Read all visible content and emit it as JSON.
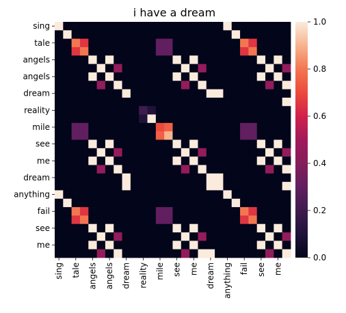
{
  "chart_data": {
    "type": "heatmap",
    "title": "i have a dream",
    "xlabel": "",
    "ylabel": "",
    "x_tick_labels": [
      "sing",
      "tale",
      "angels",
      "angels",
      "dream",
      "reality",
      "mile",
      "see",
      "me",
      "dream",
      "anything",
      "fail",
      "see",
      "me"
    ],
    "y_tick_labels": [
      "sing",
      "tale",
      "angels",
      "angels",
      "dream",
      "reality",
      "mile",
      "see",
      "me",
      "dream",
      "anything",
      "fail",
      "see",
      "me"
    ],
    "rows": 28,
    "cols": 28,
    "tick_every": 2,
    "colorbar": {
      "min": 0.0,
      "max": 1.0,
      "ticks": [
        "0.0",
        "0.2",
        "0.4",
        "0.6",
        "0.8",
        "1.0"
      ],
      "colormap": "rocket"
    },
    "matrix": [
      [
        1,
        0,
        0,
        0,
        0,
        0,
        0,
        0,
        0,
        0,
        0,
        0,
        0,
        0,
        0,
        0,
        0,
        0,
        0,
        0,
        1,
        0,
        0,
        0,
        0,
        0,
        0,
        0
      ],
      [
        0,
        1,
        0,
        0,
        0,
        0,
        0,
        0,
        0,
        0,
        0,
        0,
        0,
        0,
        0,
        0,
        0,
        0,
        0,
        0,
        0,
        1,
        0,
        0,
        0,
        0,
        0,
        0
      ],
      [
        0,
        0,
        0.8,
        0.65,
        0,
        0,
        0,
        0,
        0,
        0,
        0,
        0,
        0.3,
        0.3,
        0,
        0,
        0,
        0,
        0,
        0,
        0,
        0,
        0.8,
        0.65,
        0,
        0,
        0,
        0
      ],
      [
        0,
        0,
        0.65,
        0.8,
        0,
        0,
        0,
        0,
        0,
        0,
        0,
        0,
        0.3,
        0.3,
        0,
        0,
        0,
        0,
        0,
        0,
        0,
        0,
        0.65,
        0.8,
        0,
        0,
        0,
        0
      ],
      [
        0,
        0,
        0,
        0,
        1,
        0,
        1,
        0,
        0,
        0,
        0,
        0,
        0,
        0,
        1,
        0,
        1,
        0,
        0,
        0,
        0,
        0,
        0,
        0,
        1,
        0,
        1,
        0
      ],
      [
        0,
        0,
        0,
        0,
        0,
        1,
        0,
        0.45,
        0,
        0,
        0,
        0,
        0,
        0,
        0,
        1,
        0,
        0.45,
        0,
        0,
        0,
        0,
        0,
        0,
        0,
        1,
        0,
        0.45
      ],
      [
        0,
        0,
        0,
        0,
        1,
        0,
        1,
        0,
        0,
        0,
        0,
        0,
        0,
        0,
        1,
        0,
        1,
        0,
        0,
        0,
        0,
        0,
        0,
        0,
        1,
        0,
        1,
        0
      ],
      [
        0,
        0,
        0,
        0,
        0,
        0.45,
        0,
        1,
        0,
        0,
        0,
        0,
        0,
        0,
        0,
        0.45,
        0,
        1,
        0,
        0,
        0,
        0,
        0,
        0,
        0,
        0.45,
        0,
        1
      ],
      [
        0,
        0,
        0,
        0,
        0,
        0,
        0,
        0,
        1,
        0,
        0,
        0,
        0,
        0,
        0,
        0,
        0,
        0,
        1,
        1,
        0,
        0,
        0,
        0,
        0,
        0,
        0,
        0
      ],
      [
        0,
        0,
        0,
        0,
        0,
        0,
        0,
        0,
        0,
        0,
        0,
        0,
        0,
        0,
        0,
        0,
        0,
        0,
        0,
        0,
        0,
        0,
        0,
        0,
        0,
        0,
        0,
        1
      ],
      [
        0,
        0,
        0,
        0,
        0,
        0,
        0,
        0,
        0,
        0,
        0.2,
        0.1,
        0,
        0,
        0,
        0,
        0,
        0,
        0,
        0,
        0,
        0,
        0,
        0,
        0,
        0,
        0,
        0
      ],
      [
        0,
        0,
        0,
        0,
        0,
        0,
        0,
        0,
        0,
        0,
        0.1,
        1,
        0,
        0,
        0,
        0,
        0,
        0,
        0,
        0,
        0,
        0,
        0,
        0,
        0,
        0,
        0,
        0
      ],
      [
        0,
        0,
        0.3,
        0.3,
        0,
        0,
        0,
        0,
        0,
        0,
        0,
        0,
        0.7,
        0.75,
        0,
        0,
        0,
        0,
        0,
        0,
        0,
        0,
        0.3,
        0.3,
        0,
        0,
        0,
        0
      ],
      [
        0,
        0,
        0.3,
        0.3,
        0,
        0,
        0,
        0,
        0,
        0,
        0,
        0,
        0.75,
        0.9,
        0,
        0,
        0,
        0,
        0,
        0,
        0,
        0,
        0.3,
        0.3,
        0,
        0,
        0,
        0
      ],
      [
        0,
        0,
        0,
        0,
        1,
        0,
        1,
        0,
        0,
        0,
        0,
        0,
        0,
        0,
        1,
        0,
        1,
        0,
        0,
        0,
        0,
        0,
        0,
        0,
        1,
        0,
        1,
        0
      ],
      [
        0,
        0,
        0,
        0,
        0,
        1,
        0,
        0.45,
        0,
        0,
        0,
        0,
        0,
        0,
        0,
        1,
        0,
        0.45,
        0,
        0,
        0,
        0,
        0,
        0,
        0,
        1,
        0,
        0.45
      ],
      [
        0,
        0,
        0,
        0,
        1,
        0,
        1,
        0,
        0,
        0,
        0,
        0,
        0,
        0,
        1,
        0,
        1,
        0,
        0,
        0,
        0,
        0,
        0,
        0,
        1,
        0,
        1,
        0
      ],
      [
        0,
        0,
        0,
        0,
        0,
        0.45,
        0,
        1,
        0,
        0,
        0,
        0,
        0,
        0,
        0,
        0.45,
        0,
        1,
        0,
        0,
        0,
        0,
        0,
        0,
        0,
        0.45,
        0,
        1
      ],
      [
        0,
        0,
        0,
        0,
        0,
        0,
        0,
        0,
        1,
        0,
        0,
        0,
        0,
        0,
        0,
        0,
        0,
        0,
        1,
        1,
        0,
        0,
        0,
        0,
        0,
        0,
        0,
        0
      ],
      [
        0,
        0,
        0,
        0,
        0,
        0,
        0,
        0,
        1,
        0,
        0,
        0,
        0,
        0,
        0,
        0,
        0,
        0,
        1,
        1,
        0,
        0,
        0,
        0,
        0,
        0,
        0,
        1
      ],
      [
        1,
        0,
        0,
        0,
        0,
        0,
        0,
        0,
        0,
        0,
        0,
        0,
        0,
        0,
        0,
        0,
        0,
        0,
        0,
        0,
        1,
        0,
        0,
        0,
        0,
        0,
        0,
        0
      ],
      [
        0,
        1,
        0,
        0,
        0,
        0,
        0,
        0,
        0,
        0,
        0,
        0,
        0,
        0,
        0,
        0,
        0,
        0,
        0,
        0,
        0,
        1,
        0,
        0,
        0,
        0,
        0,
        0
      ],
      [
        0,
        0,
        0.8,
        0.65,
        0,
        0,
        0,
        0,
        0,
        0,
        0,
        0,
        0.3,
        0.3,
        0,
        0,
        0,
        0,
        0,
        0,
        0,
        0,
        0.8,
        0.65,
        0,
        0,
        0,
        0
      ],
      [
        0,
        0,
        0.65,
        0.8,
        0,
        0,
        0,
        0,
        0,
        0,
        0,
        0,
        0.3,
        0.3,
        0,
        0,
        0,
        0,
        0,
        0,
        0,
        0,
        0.65,
        0.8,
        0,
        0,
        0,
        0
      ],
      [
        0,
        0,
        0,
        0,
        1,
        0,
        1,
        0,
        0,
        0,
        0,
        0,
        0,
        0,
        1,
        0,
        1,
        0,
        0,
        0,
        0,
        0,
        0,
        0,
        1,
        0,
        1,
        0
      ],
      [
        0,
        0,
        0,
        0,
        0,
        1,
        0,
        0.45,
        0,
        0,
        0,
        0,
        0,
        0,
        0,
        1,
        0,
        0.45,
        0,
        0,
        0,
        0,
        0,
        0,
        0,
        1,
        0,
        0.45
      ],
      [
        0,
        0,
        0,
        0,
        1,
        0,
        1,
        0,
        0,
        0,
        0,
        0,
        0,
        0,
        1,
        0,
        1,
        0,
        0,
        0,
        0,
        0,
        0,
        0,
        1,
        0,
        1,
        0
      ],
      [
        0,
        0,
        0,
        0,
        0,
        0.45,
        0,
        1,
        0,
        0,
        0,
        0,
        0,
        0,
        0,
        0.45,
        0,
        1,
        1,
        0,
        0,
        0,
        0,
        0,
        0,
        0.45,
        0,
        1
      ]
    ]
  }
}
